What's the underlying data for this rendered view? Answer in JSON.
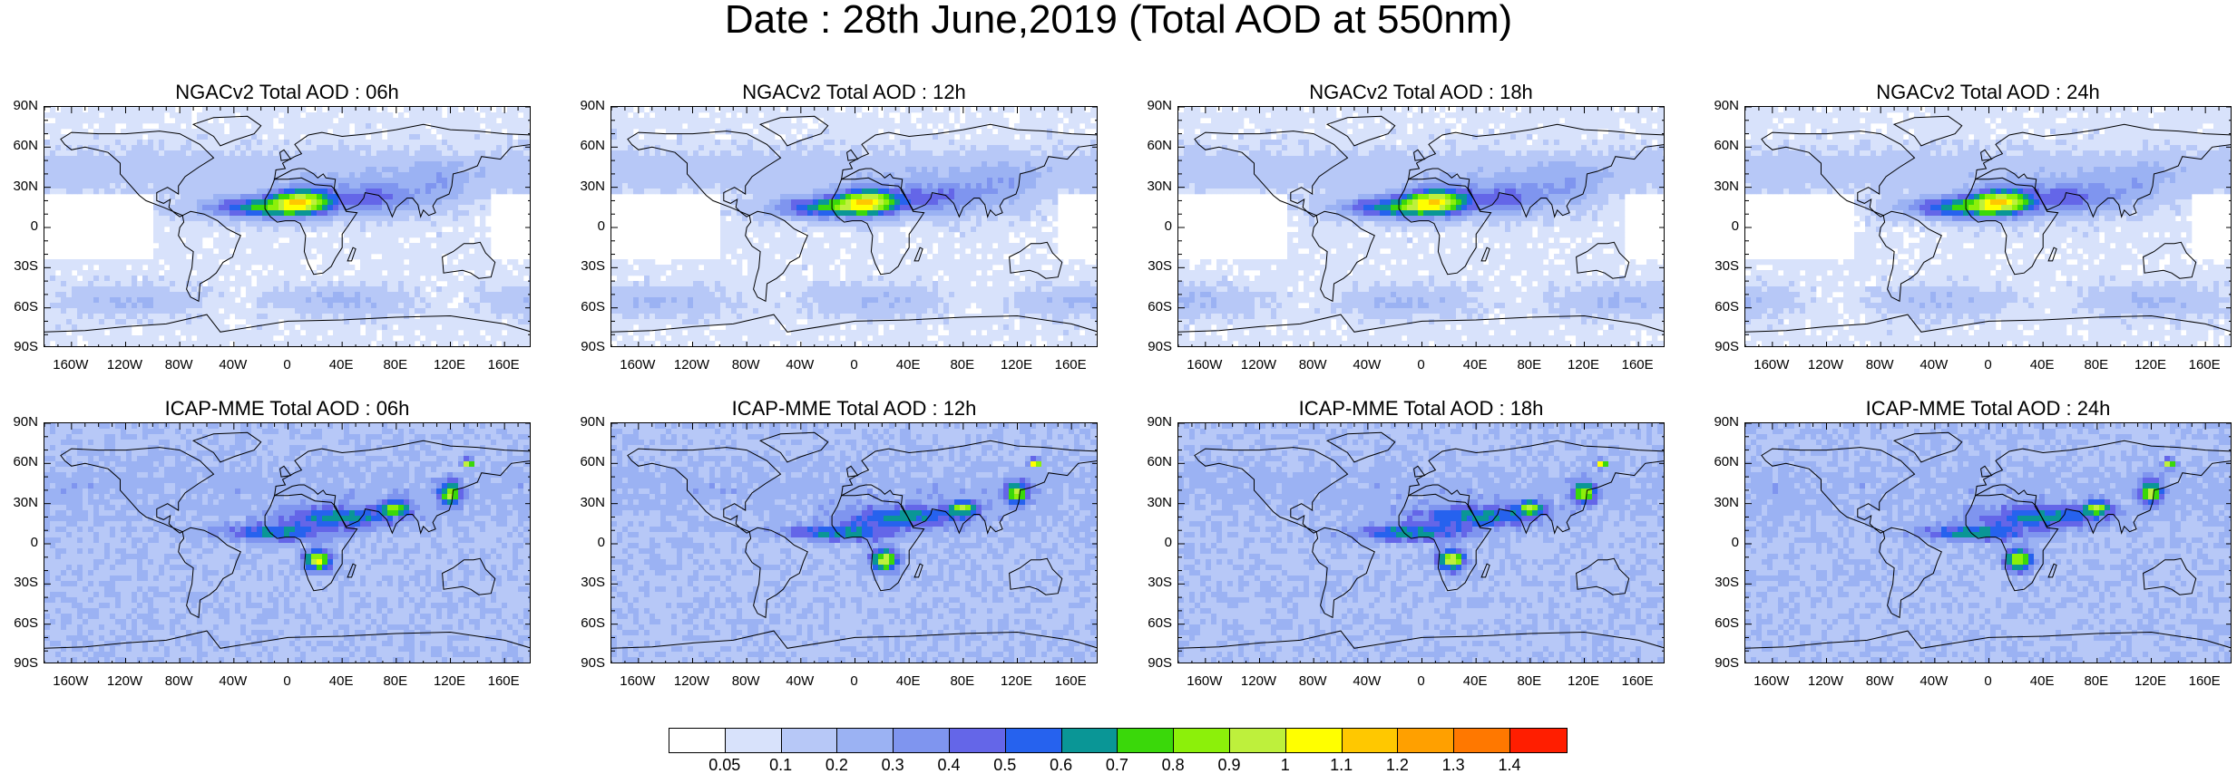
{
  "title": "Date : 28th June,2019 (Total AOD at 550nm)",
  "panels": [
    {
      "title": "NGACv2 Total AOD : 06h",
      "model": "ngac"
    },
    {
      "title": "NGACv2 Total AOD : 12h",
      "model": "ngac"
    },
    {
      "title": "NGACv2 Total AOD : 18h",
      "model": "ngac"
    },
    {
      "title": "NGACv2 Total AOD : 24h",
      "model": "ngac"
    },
    {
      "title": "ICAP-MME Total AOD : 06h",
      "model": "icap"
    },
    {
      "title": "ICAP-MME Total AOD : 12h",
      "model": "icap"
    },
    {
      "title": "ICAP-MME Total AOD : 18h",
      "model": "icap"
    },
    {
      "title": "ICAP-MME Total AOD : 24h",
      "model": "icap"
    }
  ],
  "lat_labels": [
    "90N",
    "60N",
    "30N",
    "0",
    "30S",
    "60S",
    "90S"
  ],
  "lon_labels": [
    "160W",
    "120W",
    "80W",
    "40W",
    "0",
    "40E",
    "80E",
    "120E",
    "160E"
  ],
  "colorbar": {
    "labels": [
      "0.05",
      "0.1",
      "0.2",
      "0.3",
      "0.4",
      "0.5",
      "0.6",
      "0.7",
      "0.8",
      "0.9",
      "1",
      "1.1",
      "1.2",
      "1.3",
      "1.4"
    ],
    "colors": [
      "#ffffff",
      "#d8e2fb",
      "#b7c8f7",
      "#9bb2f3",
      "#7f95ef",
      "#6466e8",
      "#2662ee",
      "#0a9696",
      "#3ad80a",
      "#8cf00a",
      "#bef03c",
      "#ffff00",
      "#ffc800",
      "#ffa000",
      "#ff7800",
      "#ff1e00"
    ]
  }
}
